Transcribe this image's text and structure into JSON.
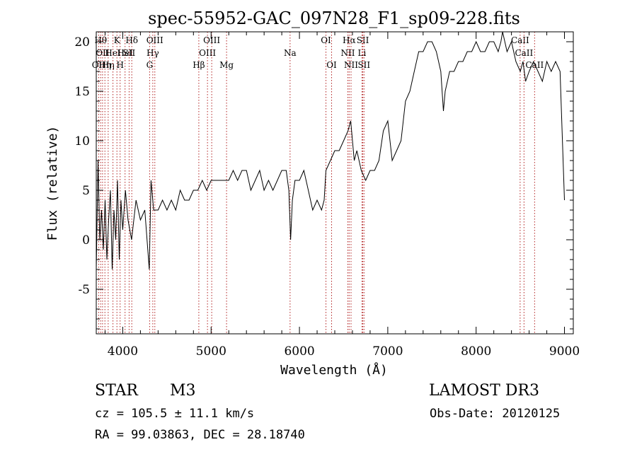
{
  "chart_data": {
    "type": "line",
    "title": "spec-55952-GAC_097N28_F1_sp09-228.fits",
    "xlabel": "Wavelength (Å)",
    "ylabel": "Flux (relative)",
    "xlim": [
      3700,
      9100
    ],
    "ylim": [
      -9.5,
      21
    ],
    "x_ticks": [
      4000,
      5000,
      6000,
      7000,
      8000,
      9000
    ],
    "y_ticks": [
      -5,
      0,
      5,
      10,
      15,
      20
    ],
    "x_minor_step": 200,
    "y_minor_step": 1,
    "grid": false,
    "line_color": "#000000",
    "marker_color": "#b22222",
    "series": [
      {
        "name": "flux",
        "x": [
          3700,
          3720,
          3740,
          3760,
          3780,
          3800,
          3820,
          3840,
          3860,
          3880,
          3900,
          3920,
          3940,
          3960,
          3980,
          4000,
          4030,
          4060,
          4100,
          4150,
          4200,
          4250,
          4300,
          4320,
          4350,
          4400,
          4450,
          4500,
          4550,
          4600,
          4650,
          4700,
          4750,
          4800,
          4850,
          4900,
          4950,
          5000,
          5050,
          5100,
          5150,
          5200,
          5250,
          5300,
          5350,
          5400,
          5450,
          5500,
          5550,
          5600,
          5650,
          5700,
          5750,
          5800,
          5850,
          5880,
          5900,
          5920,
          5950,
          6000,
          6050,
          6100,
          6150,
          6200,
          6250,
          6280,
          6300,
          6350,
          6400,
          6450,
          6500,
          6550,
          6580,
          6600,
          6620,
          6650,
          6700,
          6750,
          6800,
          6850,
          6900,
          6950,
          7000,
          7050,
          7100,
          7150,
          7200,
          7250,
          7300,
          7350,
          7400,
          7450,
          7500,
          7550,
          7600,
          7630,
          7650,
          7700,
          7750,
          7800,
          7850,
          7900,
          7950,
          8000,
          8050,
          8100,
          8150,
          8200,
          8250,
          8280,
          8300,
          8350,
          8400,
          8450,
          8500,
          8530,
          8560,
          8600,
          8650,
          8700,
          8750,
          8800,
          8850,
          8900,
          8950,
          9000
        ],
        "values": [
          -3,
          8,
          0,
          3,
          -1,
          4,
          -2,
          2,
          5,
          -3,
          3,
          0,
          6,
          -2,
          4,
          1,
          5,
          2,
          0,
          4,
          2,
          3,
          -3,
          6,
          3,
          3,
          4,
          3,
          4,
          3,
          5,
          4,
          4,
          5,
          5,
          6,
          5,
          6,
          6,
          6,
          6,
          6,
          7,
          6,
          7,
          7,
          5,
          6,
          7,
          5,
          6,
          5,
          6,
          7,
          7,
          5,
          0,
          4,
          6,
          6,
          7,
          5,
          3,
          4,
          3,
          4,
          7,
          8,
          9,
          9,
          10,
          11,
          12,
          10,
          8,
          9,
          7,
          6,
          7,
          7,
          8,
          11,
          12,
          8,
          9,
          10,
          14,
          15,
          17,
          19,
          19,
          20,
          20,
          19,
          17,
          13,
          15,
          17,
          17,
          18,
          18,
          19,
          19,
          20,
          19,
          19,
          20,
          20,
          19,
          20,
          21,
          19,
          20,
          18,
          17,
          18,
          16,
          17,
          18,
          17,
          16,
          18,
          17,
          18,
          17,
          4
        ]
      }
    ],
    "line_markers": [
      {
        "wl": 3727,
        "label": "OII",
        "row": 2
      },
      {
        "wl": 3750,
        "label": "Hθ",
        "row": 0
      },
      {
        "wl": 3771,
        "label": "OII",
        "row": 1
      },
      {
        "wl": 3798,
        "label": "Hη",
        "row": 2
      },
      {
        "wl": 3835,
        "label": "Hη",
        "row": 2
      },
      {
        "wl": 3889,
        "label": "HeI",
        "row": 1
      },
      {
        "wl": 3934,
        "label": "K",
        "row": 0
      },
      {
        "wl": 3970,
        "label": "H",
        "row": 2
      },
      {
        "wl": 4026,
        "label": "HeI",
        "row": 1
      },
      {
        "wl": 4072,
        "label": "SII",
        "row": 1
      },
      {
        "wl": 4102,
        "label": "Hδ",
        "row": 0
      },
      {
        "wl": 4304,
        "label": "G",
        "row": 2
      },
      {
        "wl": 4340,
        "label": "Hγ",
        "row": 1
      },
      {
        "wl": 4363,
        "label": "OIII",
        "row": 0
      },
      {
        "wl": 4861,
        "label": "Hβ",
        "row": 2
      },
      {
        "wl": 4959,
        "label": "OIII",
        "row": 1
      },
      {
        "wl": 5007,
        "label": "OIII",
        "row": 0
      },
      {
        "wl": 5175,
        "label": "Mg",
        "row": 2
      },
      {
        "wl": 5894,
        "label": "Na",
        "row": 1
      },
      {
        "wl": 6300,
        "label": "OI",
        "row": 0
      },
      {
        "wl": 6364,
        "label": "OI",
        "row": 2
      },
      {
        "wl": 6548,
        "label": "NII",
        "row": 1
      },
      {
        "wl": 6563,
        "label": "Hα",
        "row": 0
      },
      {
        "wl": 6584,
        "label": "NII",
        "row": 2
      },
      {
        "wl": 6708,
        "label": "Li",
        "row": 1
      },
      {
        "wl": 6717,
        "label": "SII",
        "row": 0
      },
      {
        "wl": 6731,
        "label": "SII",
        "row": 2
      },
      {
        "wl": 8498,
        "label": "CaII",
        "row": 0
      },
      {
        "wl": 8542,
        "label": "CaII",
        "row": 1
      },
      {
        "wl": 8662,
        "label": "CaII",
        "row": 2
      }
    ]
  },
  "info": {
    "object_type": "STAR",
    "subclass": "M3",
    "survey": "LAMOST DR3",
    "redshift": "cz = 105.5 ± 11.1 km/s",
    "obs_date": "Obs-Date: 20120125",
    "coords": "RA =  99.03863, DEC =  28.18740"
  }
}
